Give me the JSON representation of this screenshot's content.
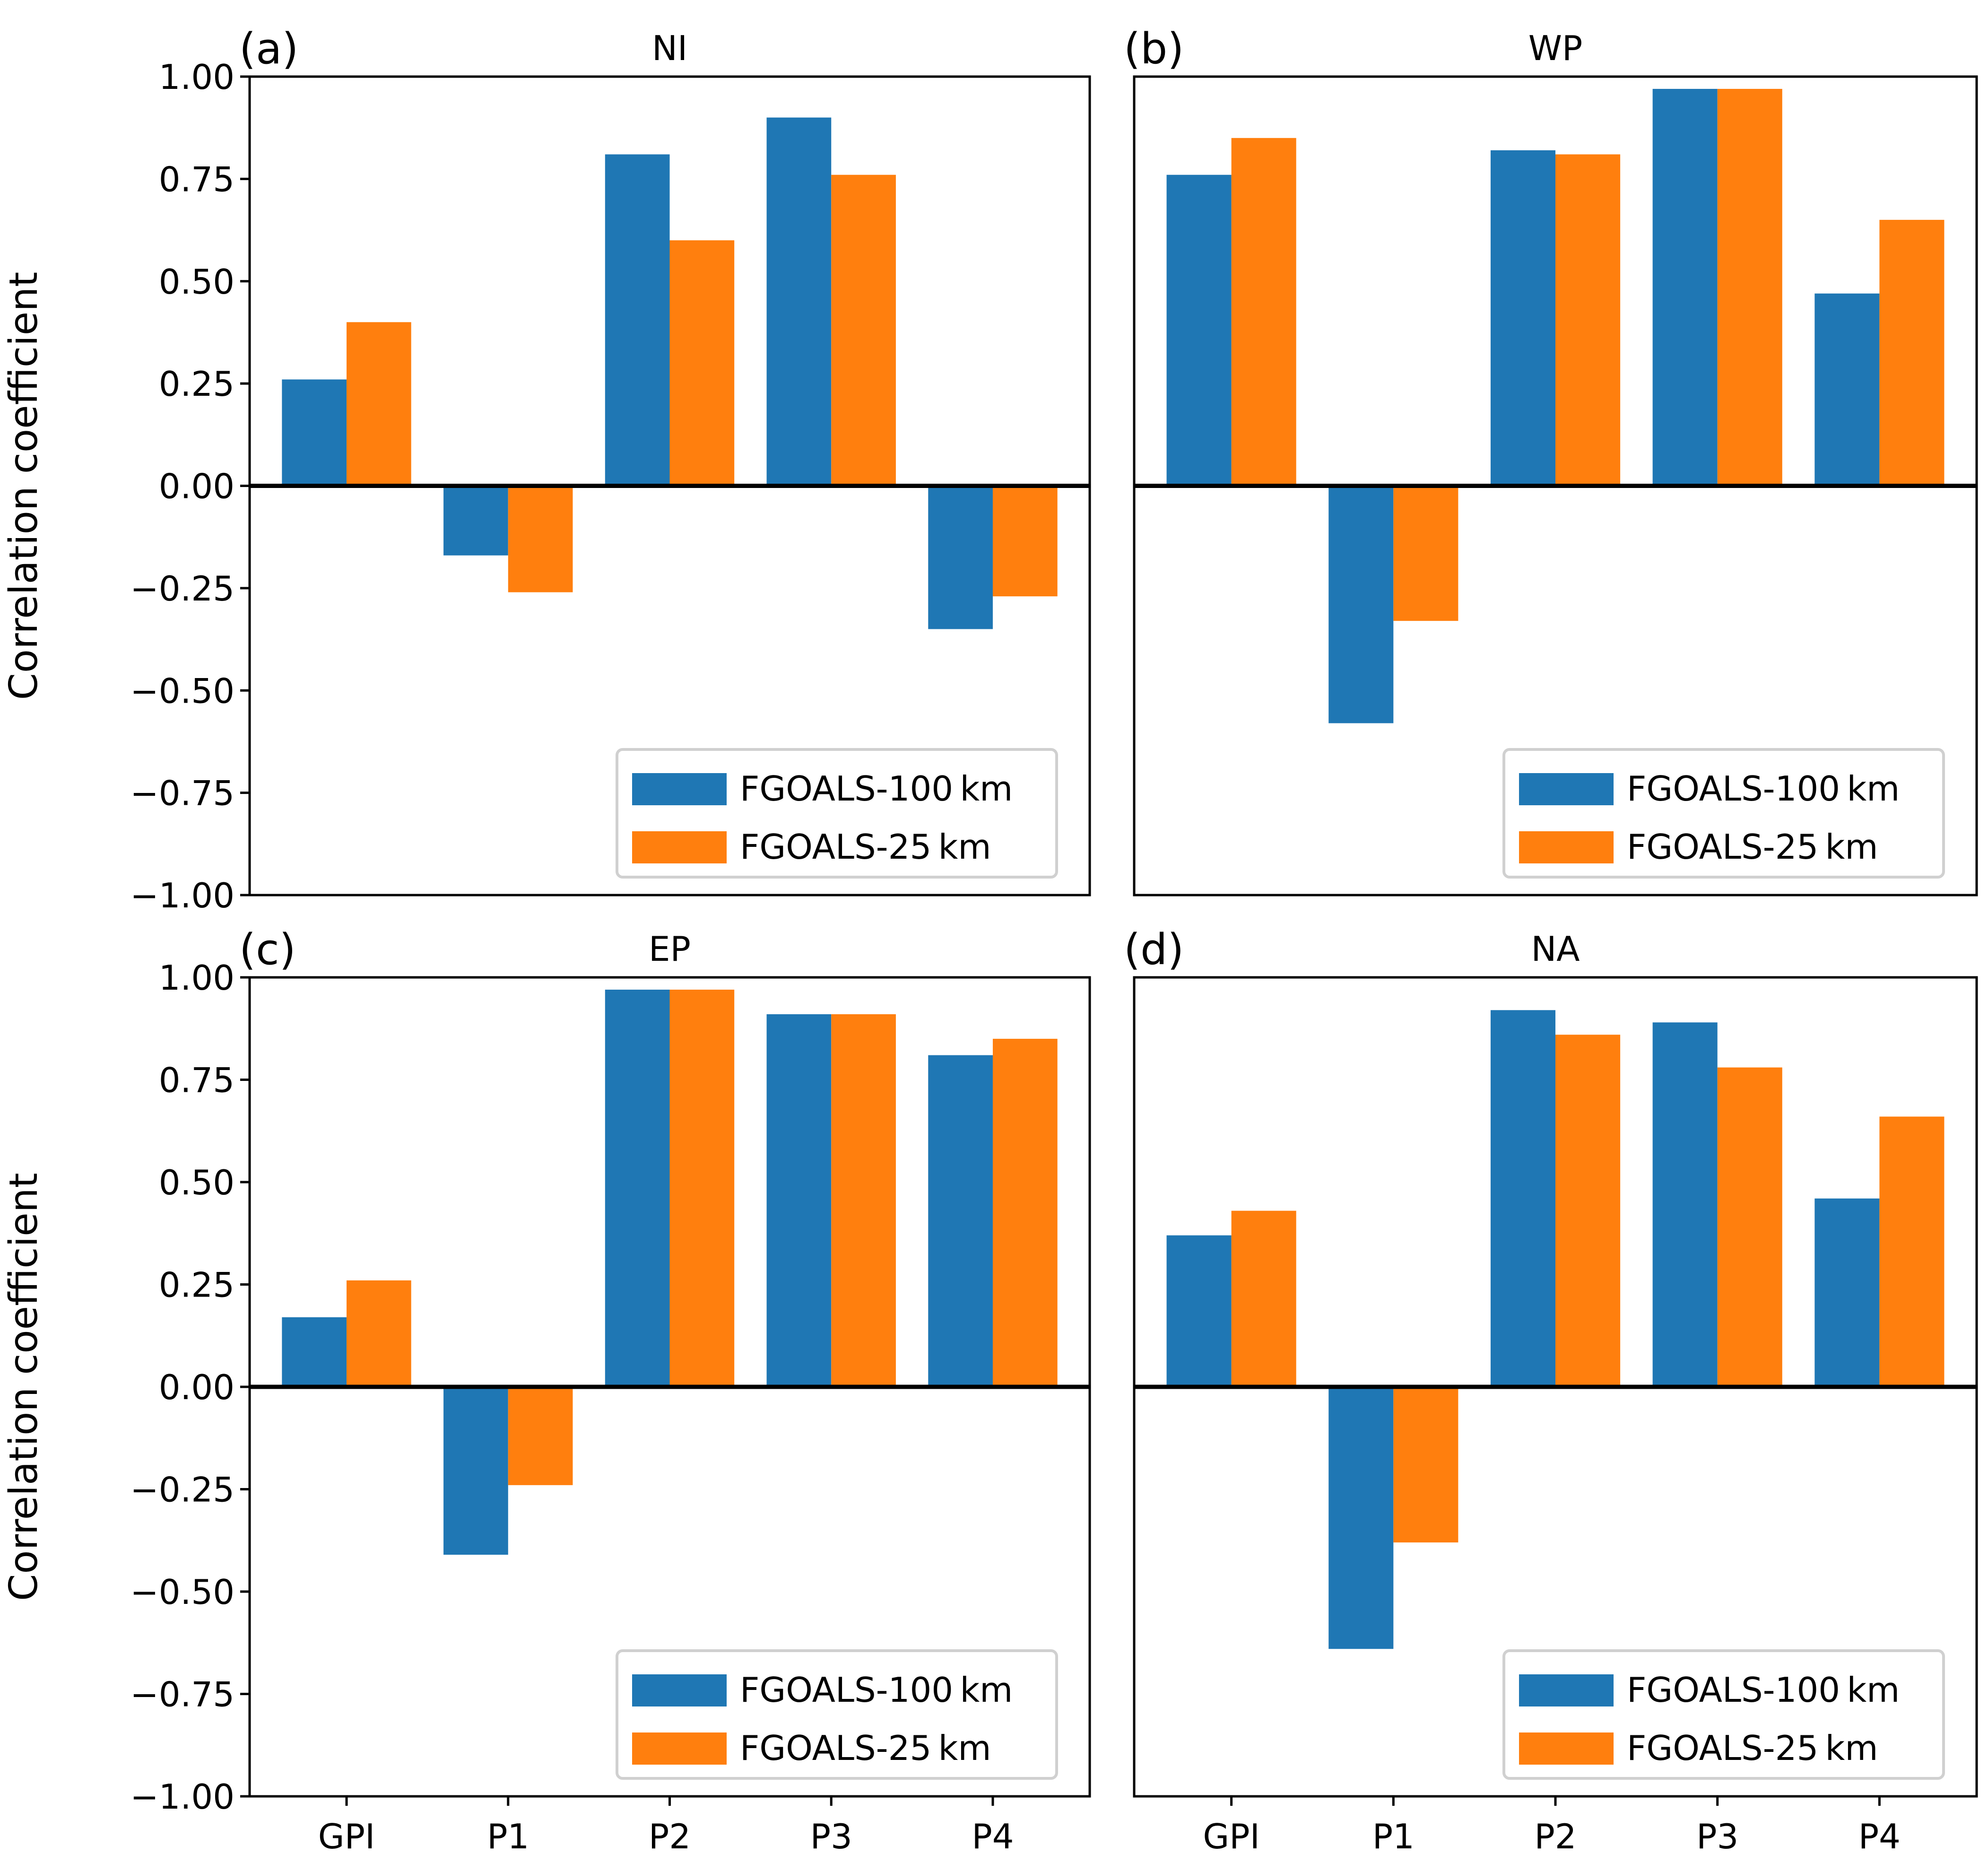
{
  "figure": {
    "ylabel": "Correlation coefficient"
  },
  "legend": {
    "items": [
      {
        "label": "FGOALS-100 km",
        "color": "#1f77b4"
      },
      {
        "label": "FGOALS-25 km",
        "color": "#ff7f0e"
      }
    ]
  },
  "chart_data": [
    {
      "type": "bar",
      "panel": "(a)",
      "title": "NI",
      "xlabel": "",
      "ylabel": "Correlation coefficient",
      "ylim": [
        -1.0,
        1.0
      ],
      "yticks": [
        "1.00",
        "0.75",
        "0.50",
        "0.25",
        "0.00",
        "−0.25",
        "−0.50",
        "−0.75",
        "−1.00"
      ],
      "categories": [
        "GPI",
        "P1",
        "P2",
        "P3",
        "P4"
      ],
      "show_xticklabels": false,
      "show_yticklabels": true,
      "legend_position": "lower-right",
      "series": [
        {
          "name": "FGOALS-100 km",
          "color": "#1f77b4",
          "values": [
            0.26,
            -0.17,
            0.81,
            0.9,
            -0.35
          ]
        },
        {
          "name": "FGOALS-25 km",
          "color": "#ff7f0e",
          "values": [
            0.4,
            -0.26,
            0.6,
            0.76,
            -0.27
          ]
        }
      ]
    },
    {
      "type": "bar",
      "panel": "(b)",
      "title": "WP",
      "xlabel": "",
      "ylabel": "",
      "ylim": [
        -1.0,
        1.0
      ],
      "yticks": [],
      "categories": [
        "GPI",
        "P1",
        "P2",
        "P3",
        "P4"
      ],
      "show_xticklabels": false,
      "show_yticklabels": false,
      "legend_position": "lower-right",
      "series": [
        {
          "name": "FGOALS-100 km",
          "color": "#1f77b4",
          "values": [
            0.76,
            -0.58,
            0.82,
            0.97,
            0.47
          ]
        },
        {
          "name": "FGOALS-25 km",
          "color": "#ff7f0e",
          "values": [
            0.85,
            -0.33,
            0.81,
            0.97,
            0.65
          ]
        }
      ]
    },
    {
      "type": "bar",
      "panel": "(c)",
      "title": "EP",
      "xlabel": "",
      "ylabel": "Correlation coefficient",
      "ylim": [
        -1.0,
        1.0
      ],
      "yticks": [
        "1.00",
        "0.75",
        "0.50",
        "0.25",
        "0.00",
        "−0.25",
        "−0.50",
        "−0.75",
        "−1.00"
      ],
      "categories": [
        "GPI",
        "P1",
        "P2",
        "P3",
        "P4"
      ],
      "show_xticklabels": true,
      "show_yticklabels": true,
      "legend_position": "lower-right",
      "series": [
        {
          "name": "FGOALS-100 km",
          "color": "#1f77b4",
          "values": [
            0.17,
            -0.41,
            0.97,
            0.91,
            0.81
          ]
        },
        {
          "name": "FGOALS-25 km",
          "color": "#ff7f0e",
          "values": [
            0.26,
            -0.24,
            0.97,
            0.91,
            0.85
          ]
        }
      ]
    },
    {
      "type": "bar",
      "panel": "(d)",
      "title": "NA",
      "xlabel": "",
      "ylabel": "",
      "ylim": [
        -1.0,
        1.0
      ],
      "yticks": [],
      "categories": [
        "GPI",
        "P1",
        "P2",
        "P3",
        "P4"
      ],
      "show_xticklabels": true,
      "show_yticklabels": false,
      "legend_position": "lower-right",
      "series": [
        {
          "name": "FGOALS-100 km",
          "color": "#1f77b4",
          "values": [
            0.37,
            -0.64,
            0.92,
            0.89,
            0.46
          ]
        },
        {
          "name": "FGOALS-25 km",
          "color": "#ff7f0e",
          "values": [
            0.43,
            -0.38,
            0.86,
            0.78,
            0.66
          ]
        }
      ]
    }
  ]
}
